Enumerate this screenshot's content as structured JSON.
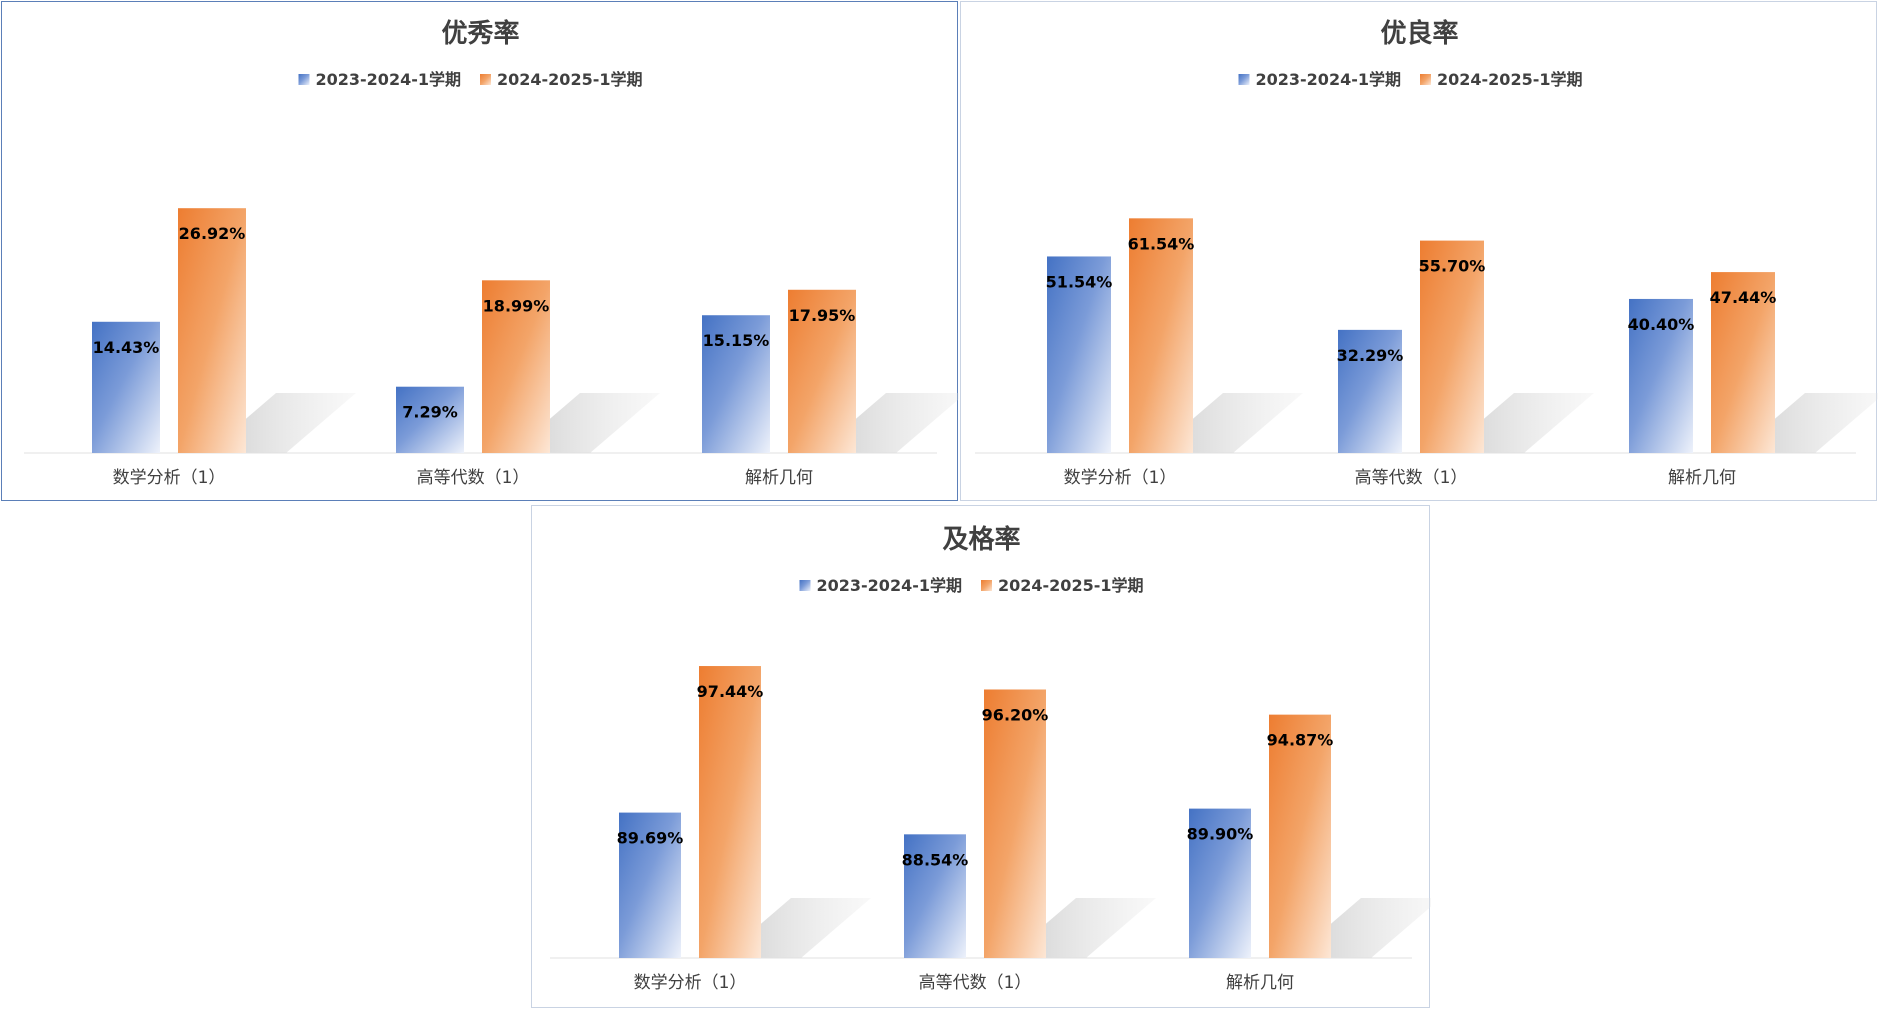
{
  "colors": {
    "series_a": "#4472c4",
    "series_b": "#ed7d31",
    "title": "#404040",
    "axis_label": "#404040",
    "data_label": "#000000"
  },
  "chart_data": [
    {
      "type": "bar",
      "title": "优秀率",
      "categories": [
        "数学分析（1）",
        "高等代数（1）",
        "解析几何"
      ],
      "series": [
        {
          "name": "2023-2024-1学期",
          "values": [
            14.43,
            7.29,
            15.15
          ],
          "labels": [
            "14.43%",
            "7.29%",
            "15.15%"
          ]
        },
        {
          "name": "2024-2025-1学期",
          "values": [
            26.92,
            18.99,
            17.95
          ],
          "labels": [
            "26.92%",
            "18.99%",
            "17.95%"
          ]
        }
      ],
      "ylim": [
        0,
        32
      ],
      "grid": false,
      "legend": "top",
      "xlabel": "",
      "ylabel": ""
    },
    {
      "type": "bar",
      "title": "优良率",
      "categories": [
        "数学分析（1）",
        "高等代数（1）",
        "解析几何"
      ],
      "series": [
        {
          "name": "2023-2024-1学期",
          "values": [
            51.54,
            32.29,
            40.4
          ],
          "labels": [
            "51.54%",
            "32.29%",
            "40.40%"
          ]
        },
        {
          "name": "2024-2025-1学期",
          "values": [
            61.54,
            55.7,
            47.44
          ],
          "labels": [
            "61.54%",
            "55.70%",
            "47.44%"
          ]
        }
      ],
      "ylim": [
        0,
        75
      ],
      "grid": false,
      "legend": "top",
      "xlabel": "",
      "ylabel": ""
    },
    {
      "type": "bar",
      "title": "及格率",
      "categories": [
        "数学分析（1）",
        "高等代数（1）",
        "解析几何"
      ],
      "series": [
        {
          "name": "2023-2024-1学期",
          "values": [
            89.69,
            88.54,
            89.9
          ],
          "labels": [
            "89.69%",
            "88.54%",
            "89.90%"
          ]
        },
        {
          "name": "2024-2025-1学期",
          "values": [
            97.44,
            96.2,
            94.87
          ],
          "labels": [
            "97.44%",
            "96.20%",
            "94.87%"
          ]
        }
      ],
      "ylim": [
        82,
        98.5
      ],
      "grid": false,
      "legend": "top",
      "xlabel": "",
      "ylabel": ""
    }
  ]
}
